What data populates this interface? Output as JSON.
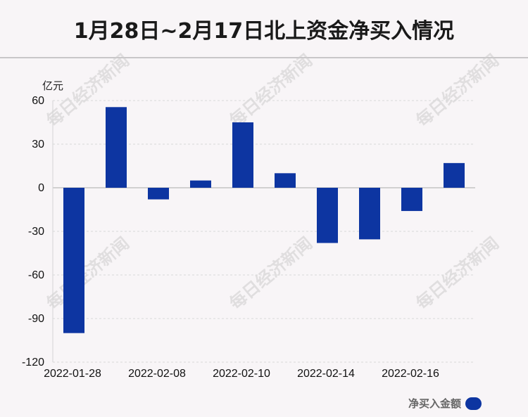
{
  "title": "1月28日~2月17日北上资金净买入情况",
  "watermark": "每日经济新闻",
  "colors": {
    "bar": "#0d35a1",
    "background": "#f8f5f7",
    "grid": "#d9d9d9"
  },
  "chart_data": {
    "type": "bar",
    "ylabel": "亿元",
    "ylim": [
      -120,
      60
    ],
    "yticks": [
      60,
      30,
      0,
      -30,
      -60,
      -90,
      -120
    ],
    "grid": true,
    "legend_position": "bottom-right",
    "categories": [
      "2022-01-28",
      "",
      "",
      "",
      "",
      "",
      "",
      "",
      "",
      ""
    ],
    "x_tick_labels": [
      "2022-01-28",
      "2022-02-08",
      "2022-02-10",
      "2022-02-14",
      "2022-02-16"
    ],
    "series": [
      {
        "name": "净买入金额",
        "values": [
          -100,
          55.5,
          -8,
          5,
          45,
          10,
          -38,
          -35.5,
          -16,
          17
        ]
      }
    ]
  }
}
